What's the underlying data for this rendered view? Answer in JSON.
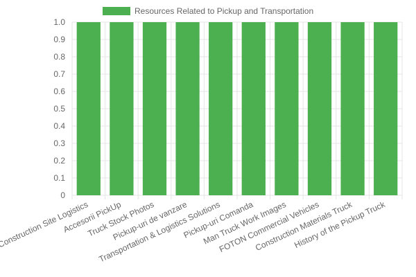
{
  "chart_data": {
    "type": "bar",
    "categories": [
      "Construction Site Logistics",
      "Accesorii PickUp",
      "Truck Stock Photos",
      "Pickup-uri de vanzare",
      "Transportation & Logistics Solutions",
      "Pickup-uri Comanda",
      "Man Truck Work Images",
      "FOTON Commercial Vehicles",
      "Construction Materials Truck",
      "History of the Pickup Truck"
    ],
    "series": [
      {
        "name": "Resources Related to Pickup and Transportation",
        "values": [
          1,
          1,
          1,
          1,
          1,
          1,
          1,
          1,
          1,
          1
        ],
        "color": "#4caf50"
      }
    ],
    "yticks": [
      "0",
      "0.1",
      "0.2",
      "0.3",
      "0.4",
      "0.5",
      "0.6",
      "0.7",
      "0.8",
      "0.9",
      "1.0"
    ],
    "ylim": [
      0,
      1
    ],
    "grid": true,
    "legend_position": "top-center"
  }
}
